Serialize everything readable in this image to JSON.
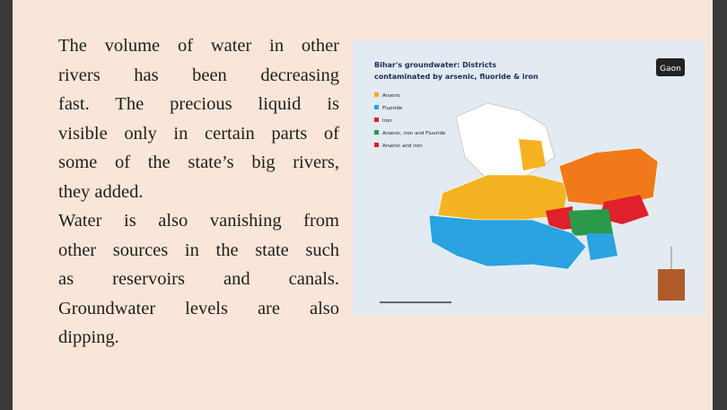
{
  "article": {
    "paragraphs": [
      {
        "lines": [
          "The volume of water in other",
          "rivers has been decreasing",
          "fast. The precious liquid is",
          "visible only in certain parts of",
          "some of the state’s big rivers,",
          "they added."
        ]
      },
      {
        "lines": [
          "Water is also vanishing from",
          "other sources in the state such",
          "as reservoirs and canals.",
          "Groundwater levels are also",
          "dipping."
        ]
      }
    ]
  },
  "figure": {
    "title_lines": [
      "Bihar's groundwater: Districts",
      "contaminated by arsenic, fluoride & iron"
    ],
    "logo": "Gaon",
    "legend": [
      {
        "label": "Arsenic",
        "color": "#f6a623"
      },
      {
        "label": "Fluoride",
        "color": "#2aa3e0"
      },
      {
        "label": "Iron",
        "color": "#e0202a"
      },
      {
        "label": "Arsenic, iron and Fluoride",
        "color": "#2a9a4a"
      },
      {
        "label": "Arsenic and iron",
        "color": "#e01a2a"
      }
    ]
  }
}
